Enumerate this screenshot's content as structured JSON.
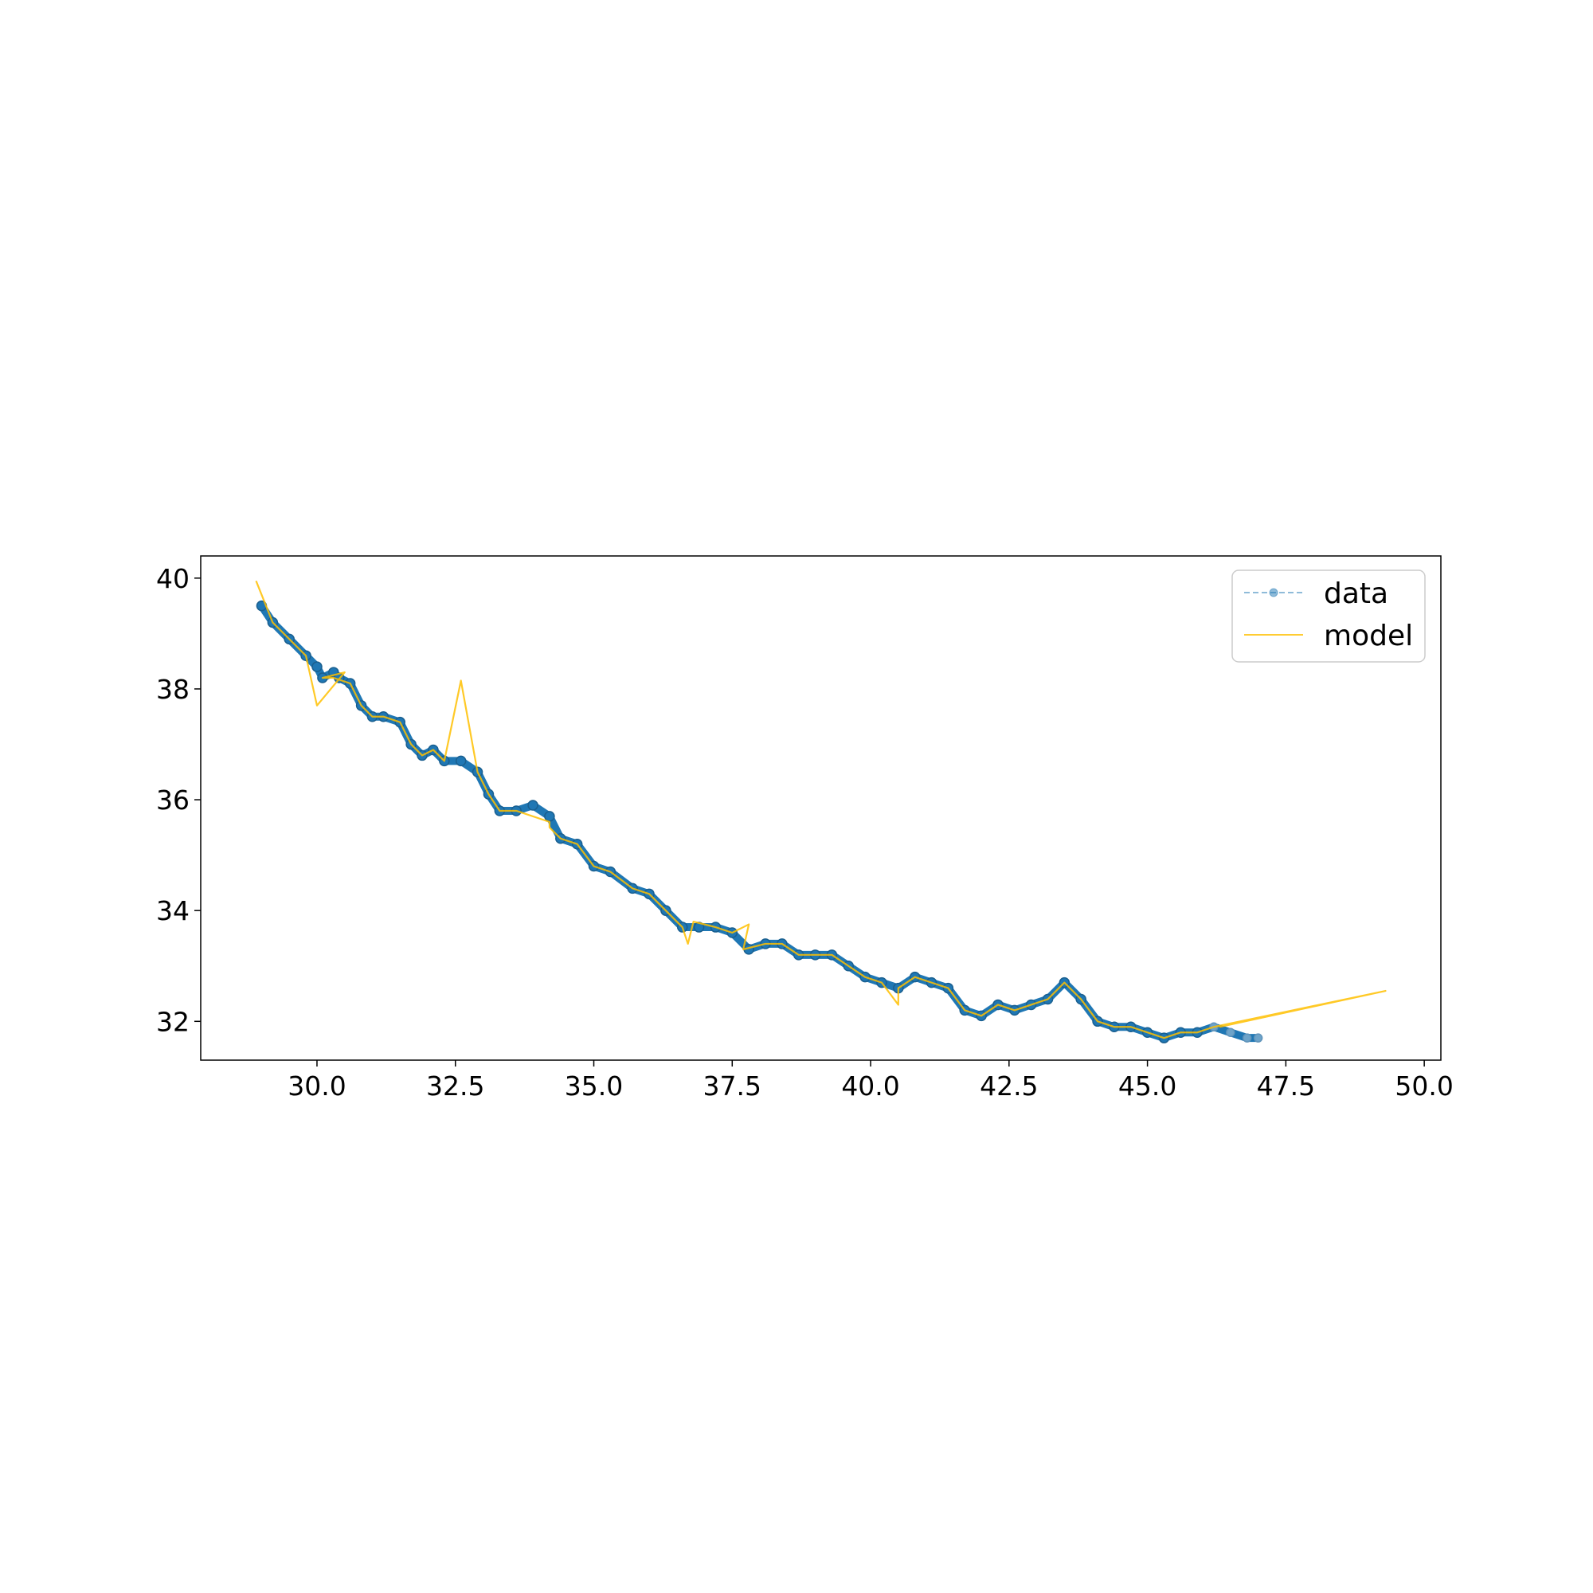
{
  "chart_data": {
    "type": "line",
    "title": "",
    "xlabel": "",
    "ylabel": "",
    "xlim": [
      27.9,
      50.3
    ],
    "ylim": [
      31.3,
      40.4
    ],
    "xticks": [
      30.0,
      32.5,
      35.0,
      37.5,
      40.0,
      42.5,
      45.0,
      47.5,
      50.0
    ],
    "xtick_labels": [
      "30.0",
      "32.5",
      "35.0",
      "37.5",
      "40.0",
      "42.5",
      "45.0",
      "47.5",
      "50.0"
    ],
    "yticks": [
      32,
      34,
      36,
      38,
      40
    ],
    "ytick_labels": [
      "32",
      "34",
      "36",
      "38",
      "40"
    ],
    "grid": false,
    "legend_position": "top-right",
    "series": [
      {
        "name": "data",
        "style": "dashed line with circle markers",
        "color": "#1f77b4",
        "x": [
          29.0,
          29.2,
          29.5,
          29.8,
          30.0,
          30.1,
          30.3,
          30.4,
          30.6,
          30.8,
          31.0,
          31.2,
          31.5,
          31.7,
          31.9,
          32.1,
          32.3,
          32.6,
          32.9,
          33.1,
          33.3,
          33.6,
          33.9,
          34.2,
          34.4,
          34.7,
          35.0,
          35.3,
          35.7,
          36.0,
          36.3,
          36.6,
          36.9,
          37.2,
          37.5,
          37.8,
          38.1,
          38.4,
          38.7,
          39.0,
          39.3,
          39.6,
          39.9,
          40.2,
          40.5,
          40.8,
          41.1,
          41.4,
          41.7,
          42.0,
          42.3,
          42.6,
          42.9,
          43.2,
          43.5,
          43.8,
          44.1,
          44.4,
          44.7,
          45.0,
          45.3,
          45.6,
          45.9,
          46.2,
          46.5,
          46.8,
          47.0
        ],
        "y": [
          39.5,
          39.2,
          38.9,
          38.6,
          38.4,
          38.2,
          38.3,
          38.2,
          38.1,
          37.7,
          37.5,
          37.5,
          37.4,
          37.0,
          36.8,
          36.9,
          36.7,
          36.7,
          36.5,
          36.1,
          35.8,
          35.8,
          35.9,
          35.7,
          35.3,
          35.2,
          34.8,
          34.7,
          34.4,
          34.3,
          34.0,
          33.7,
          33.7,
          33.7,
          33.6,
          33.3,
          33.4,
          33.4,
          33.2,
          33.2,
          33.2,
          33.0,
          32.8,
          32.7,
          32.6,
          32.8,
          32.7,
          32.6,
          32.2,
          32.1,
          32.3,
          32.2,
          32.3,
          32.4,
          32.7,
          32.4,
          32.0,
          31.9,
          31.9,
          31.8,
          31.7,
          31.8,
          31.8,
          31.9,
          31.8,
          31.7,
          31.7
        ]
      },
      {
        "name": "model",
        "style": "solid line",
        "color": "#ffbf00",
        "x": [
          28.9,
          29.2,
          29.5,
          29.8,
          30.0,
          30.5,
          30.1,
          30.3,
          30.6,
          30.8,
          31.0,
          31.2,
          31.5,
          31.7,
          31.9,
          32.1,
          32.3,
          32.6,
          32.9,
          33.1,
          33.3,
          33.6,
          34.2,
          34.2,
          34.4,
          34.7,
          35.0,
          35.3,
          35.7,
          36.0,
          36.3,
          36.6,
          36.7,
          36.8,
          37.2,
          37.5,
          37.8,
          37.7,
          38.1,
          38.4,
          38.7,
          39.0,
          39.3,
          39.6,
          39.9,
          40.2,
          40.5,
          40.5,
          40.8,
          41.1,
          41.4,
          41.7,
          42.0,
          42.3,
          42.6,
          42.9,
          43.2,
          43.5,
          43.8,
          44.1,
          44.4,
          44.7,
          45.0,
          45.3,
          45.6,
          45.9,
          46.2,
          49.3,
          46.3
        ],
        "y": [
          39.95,
          39.2,
          38.9,
          38.6,
          37.7,
          38.3,
          38.2,
          38.2,
          38.1,
          37.7,
          37.5,
          37.5,
          37.4,
          37.0,
          36.8,
          36.9,
          36.7,
          38.15,
          36.5,
          36.1,
          35.8,
          35.8,
          35.6,
          35.5,
          35.3,
          35.2,
          34.8,
          34.7,
          34.4,
          34.3,
          34.0,
          33.7,
          33.4,
          33.8,
          33.7,
          33.6,
          33.75,
          33.3,
          33.4,
          33.4,
          33.2,
          33.2,
          33.2,
          33.0,
          32.8,
          32.7,
          32.3,
          32.6,
          32.8,
          32.7,
          32.6,
          32.2,
          32.1,
          32.3,
          32.2,
          32.3,
          32.4,
          32.7,
          32.4,
          32.0,
          31.9,
          31.9,
          31.8,
          31.7,
          31.8,
          31.8,
          31.9,
          32.55,
          31.9
        ]
      }
    ]
  }
}
